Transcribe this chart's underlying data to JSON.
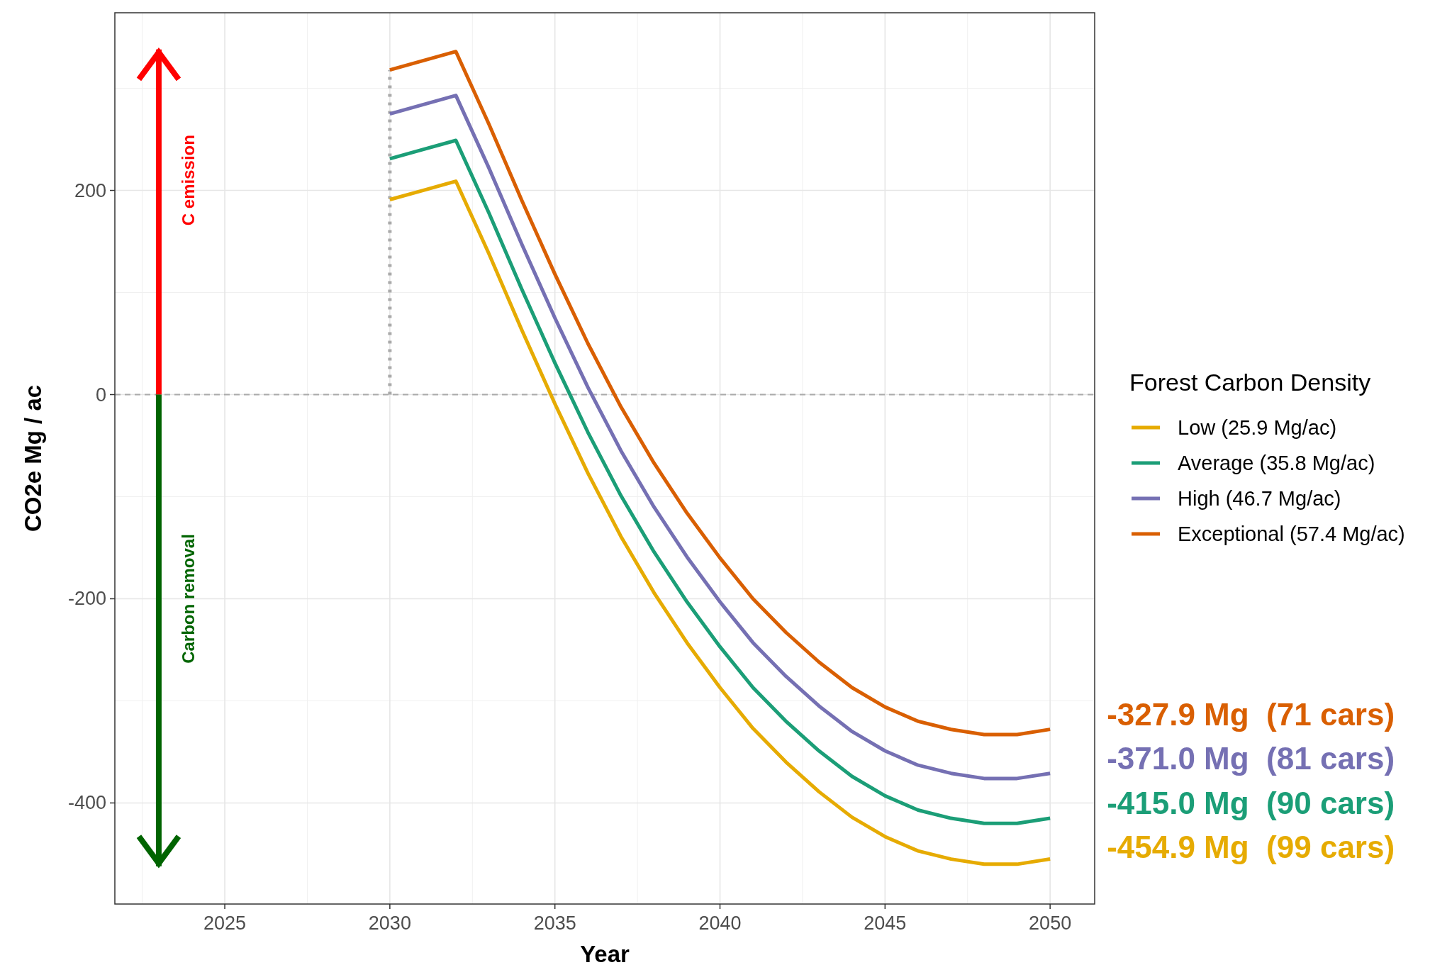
{
  "chart_data": {
    "type": "line",
    "xlabel": "Year",
    "ylabel": "CO2e Mg / ac",
    "legend_title": "Forest Carbon Density",
    "legend": "right",
    "grid": true,
    "line_style": "solid",
    "x": [
      2030,
      2031,
      2032,
      2033,
      2034,
      2035,
      2036,
      2037,
      2038,
      2039,
      2040,
      2041,
      2042,
      2043,
      2044,
      2045,
      2046,
      2047,
      2048,
      2049,
      2050
    ],
    "xlim": [
      2021.67,
      2051.35
    ],
    "xticks": [
      2025,
      2030,
      2035,
      2040,
      2045,
      2050
    ],
    "ylim": [
      -499,
      374
    ],
    "yticks": [
      -400,
      -200,
      0,
      200
    ],
    "series": [
      {
        "name": "Low (25.9 Mg/ac)",
        "color": "#e6ab02",
        "values": [
          191,
          200,
          209,
          138,
          63,
          -9,
          -77,
          -139,
          -194,
          -243,
          -287,
          -327,
          -360,
          -389,
          -414,
          -433,
          -447,
          -455,
          -460,
          -460,
          -454.9
        ]
      },
      {
        "name": "Average (35.8 Mg/ac)",
        "color": "#1b9e77",
        "values": [
          231,
          240,
          249,
          178,
          103,
          31,
          -37,
          -99,
          -154,
          -203,
          -247,
          -287,
          -320,
          -349,
          -374,
          -393,
          -407,
          -415,
          -420,
          -420,
          -415.0
        ]
      },
      {
        "name": "High (46.7 Mg/ac)",
        "color": "#7570b3",
        "values": [
          275,
          284,
          293,
          222,
          147,
          75,
          7,
          -55,
          -110,
          -159,
          -203,
          -243,
          -276,
          -305,
          -330,
          -349,
          -363,
          -371,
          -376,
          -376,
          -371.0
        ]
      },
      {
        "name": "Exceptional (57.4 Mg/ac)",
        "color": "#d95f02",
        "values": [
          318,
          327,
          336,
          265,
          190,
          118,
          50,
          -12,
          -67,
          -116,
          -160,
          -200,
          -233,
          -262,
          -287,
          -306,
          -320,
          -328,
          -333,
          -333,
          -327.9
        ]
      }
    ],
    "ref_lines": [
      {
        "axis": "y",
        "value": 0,
        "color": "#aaaaaa",
        "line_style": "dashed"
      },
      {
        "axis": "x",
        "value": 2030,
        "color": "#aaaaaa",
        "line_style": "dotted"
      }
    ],
    "annotations": [
      "-327.9 Mg  (71 cars)",
      "-371.0 Mg  (81 cars)",
      "-415.0 Mg  (90 cars)",
      "-454.9 Mg  (99 cars)",
      "C emission",
      "Carbon removal"
    ]
  }
}
